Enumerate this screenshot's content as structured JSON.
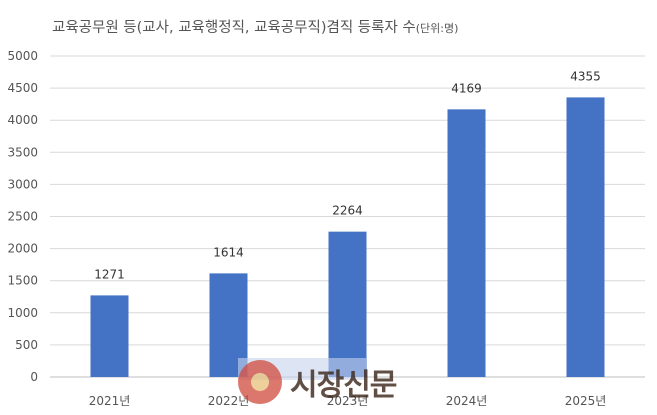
{
  "chart_data": {
    "type": "bar",
    "title": "교육공무원 등(교사, 교육행정직, 교육공무직)겸직 등록자 수",
    "title_unit": "(단위:명)",
    "categories": [
      "2021년",
      "2022년",
      "2023년",
      "2024년",
      "2025년"
    ],
    "values": [
      1271,
      1614,
      2264,
      4169,
      4355
    ],
    "ylim": [
      0,
      5000
    ],
    "yticks": [
      0,
      500,
      1000,
      1500,
      2000,
      2500,
      3000,
      3500,
      4000,
      4500,
      5000
    ],
    "grid": true,
    "legend": "none",
    "bar_color": "#4472c4"
  },
  "watermark": {
    "brand": "시장신문"
  }
}
